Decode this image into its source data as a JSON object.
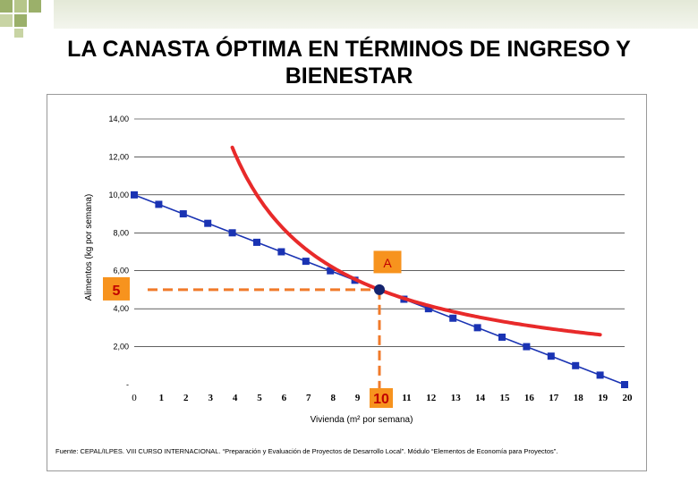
{
  "title": "LA CANASTA ÓPTIMA EN TÉRMINOS DE INGRESO Y BIENESTAR",
  "source": "Fuente: CEPAL/ILPES. VIII CURSO INTERNACIONAL. “Preparación y Evaluación de Proyectos de Desarrollo Local”. Módulo “Elementos de Economía para Proyectos”.",
  "chart_data": {
    "type": "line",
    "title": "LA CANASTA ÓPTIMA EN TÉRMINOS DE INGRESO Y BIENESTAR",
    "xlabel": "Vivienda (m² por semana)",
    "ylabel": "Alimentos (kg por semana)",
    "xlim": [
      0,
      20
    ],
    "ylim": [
      0,
      14
    ],
    "x_ticks": [
      "0",
      "1",
      "2",
      "3",
      "4",
      "5",
      "6",
      "7",
      "8",
      "9",
      "10",
      "11",
      "12",
      "13",
      "14",
      "15",
      "16",
      "17",
      "18",
      "19",
      "20"
    ],
    "y_ticks": [
      "-",
      "2,00",
      "4,00",
      "6,00",
      "8,00",
      "10,00",
      "12,00",
      "14,00"
    ],
    "grid": true,
    "series": [
      {
        "name": "",
        "kind": "budget-line",
        "color": "#1a33b3",
        "x": [
          0,
          1,
          2,
          3,
          4,
          5,
          6,
          7,
          8,
          9,
          10,
          11,
          12,
          13,
          14,
          15,
          16,
          17,
          18,
          19,
          20
        ],
        "y": [
          10,
          9.5,
          9,
          8.5,
          8,
          7.5,
          7,
          6.5,
          6,
          5.5,
          5,
          4.5,
          4,
          3.5,
          3,
          2.5,
          2,
          1.5,
          1,
          0.5,
          0
        ]
      },
      {
        "name": "",
        "kind": "indifference-curve",
        "color": "#e82a2a",
        "x": [
          4,
          5,
          6,
          7,
          8,
          9,
          10,
          11,
          12,
          13,
          14,
          15,
          16,
          17,
          18,
          19
        ],
        "y": [
          12.5,
          10,
          8.33,
          7.14,
          6.25,
          5.56,
          5,
          4.55,
          4.17,
          3.85,
          3.57,
          3.33,
          3.13,
          2.94,
          2.78,
          2.63
        ]
      }
    ],
    "optimum": {
      "label": "A",
      "x": 10,
      "y": 5,
      "x_marker": "10",
      "y_marker": "5"
    }
  }
}
